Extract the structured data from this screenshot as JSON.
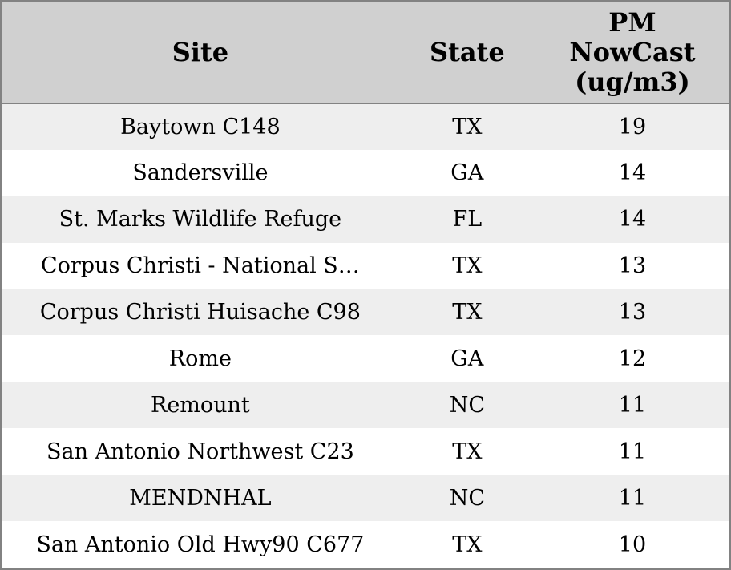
{
  "chart_data": {
    "type": "table",
    "columns": [
      "Site",
      "State",
      "PM\nNowCast\n(ug/m3)"
    ],
    "rows": [
      [
        "Baytown C148",
        "TX",
        19
      ],
      [
        "Sandersville",
        "GA",
        14
      ],
      [
        "St. Marks Wildlife Refuge",
        "FL",
        14
      ],
      [
        "Corpus Christi - National S…",
        "TX",
        13
      ],
      [
        "Corpus Christi Huisache C98",
        "TX",
        13
      ],
      [
        "Rome",
        "GA",
        12
      ],
      [
        "Remount",
        "NC",
        11
      ],
      [
        "San Antonio Northwest C23",
        "TX",
        11
      ],
      [
        "MENDNHAL",
        "NC",
        11
      ],
      [
        "San Antonio Old Hwy90 C677",
        "TX",
        10
      ]
    ],
    "title": "",
    "legend": "none",
    "grid": "zebra-stripes"
  },
  "colors": {
    "header_bg": "#d0d0d0",
    "stripe_row_bg": "#eeeeee",
    "plain_row_bg": "#ffffff",
    "border": "#828282",
    "text": "#000000"
  }
}
